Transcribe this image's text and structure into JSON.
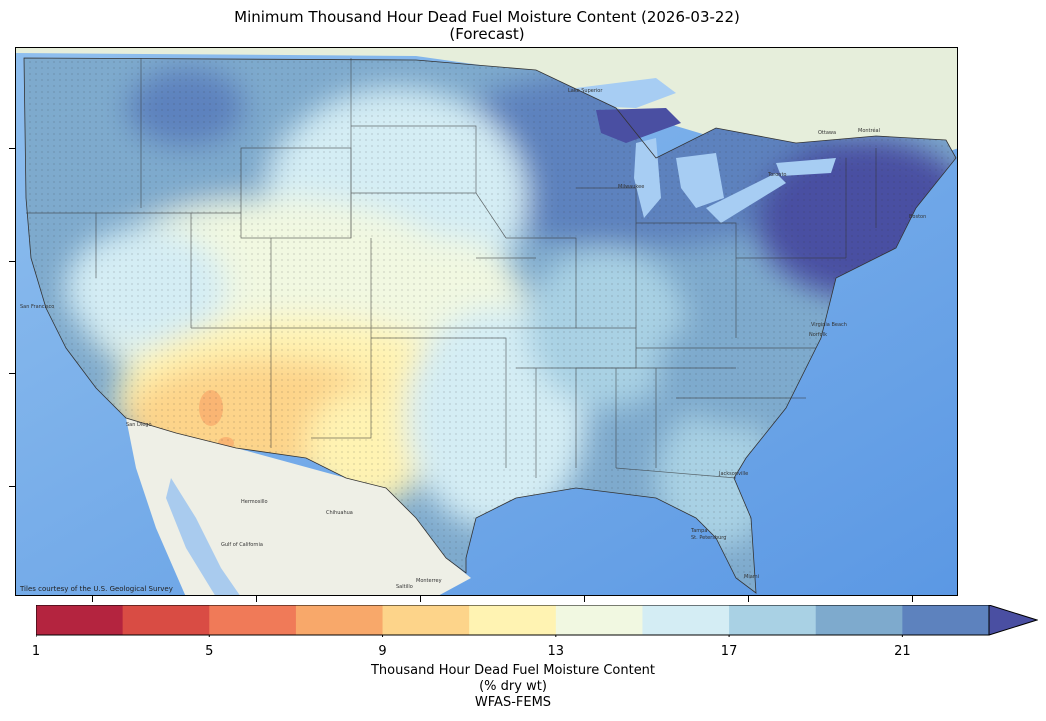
{
  "title_line1": "Minimum Thousand Hour Dead Fuel Moisture Content (2026-03-22)",
  "title_line2": "(Forecast)",
  "attribution": "Tiles courtesy of the U.S. Geological Survey",
  "colorbar": {
    "title_line1": "Thousand Hour Dead Fuel Moisture Content",
    "title_line2": "(% dry wt)",
    "title_line3": "WFAS-FEMS",
    "tick_labels": [
      "1",
      "5",
      "9",
      "13",
      "17",
      "21"
    ],
    "min": 1,
    "max": 23,
    "extend": "max",
    "colors": [
      "#b4243f",
      "#d94c44",
      "#f07a58",
      "#f8a86a",
      "#fdd48a",
      "#fff3b2",
      "#f1f8e1",
      "#d4edf4",
      "#a9d1e4",
      "#7eaacd",
      "#5d82be",
      "#4a4fa2"
    ]
  },
  "map_labels": {
    "lake_superior": "Lake Superior",
    "milwaukee": "Milwaukee",
    "ottawa": "Ottawa",
    "montreal": "Montréal",
    "toronto": "Toronto",
    "boston": "Boston",
    "san_francisco": "San Francisco",
    "san_diego": "San Diego",
    "hermosillo": "Hermosillo",
    "chihuahua": "Chihuahua",
    "monterrey": "Monterrey",
    "saltillo": "Saltillo",
    "gulf_of_california": "Gulf of California",
    "norfolk": "Norfolk",
    "jacksonville": "Jacksonville",
    "tampa": "Tampa",
    "st_petersburg": "St. Petersburg",
    "miami": "Miami",
    "virginia_beach": "Virginia Beach"
  }
}
